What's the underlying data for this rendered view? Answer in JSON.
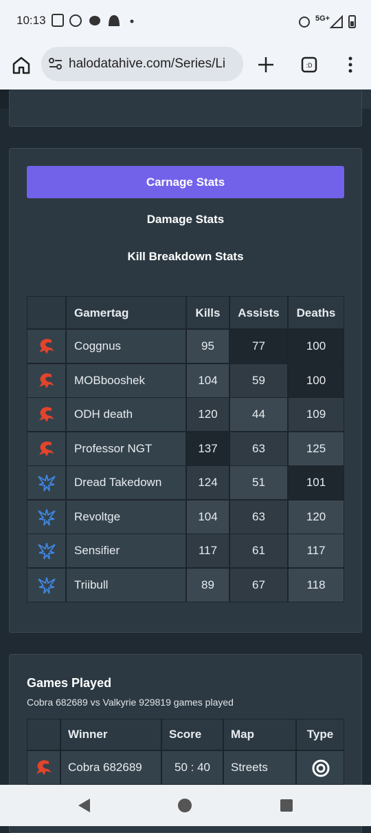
{
  "status_bar": {
    "time": "10:13",
    "network": "5G+"
  },
  "browser": {
    "url": "halodatahive.com/Series/Li"
  },
  "stats": {
    "tabs": [
      "Carnage Stats",
      "Damage Stats",
      "Kill Breakdown Stats"
    ],
    "columns": [
      "Gamertag",
      "Kills",
      "Assists",
      "Deaths"
    ],
    "teams": [
      {
        "players": [
          {
            "gamertag": "Coggnus",
            "kills": 95,
            "assists": 77,
            "deaths": 100
          },
          {
            "gamertag": "MOBbooshek",
            "kills": 104,
            "assists": 59,
            "deaths": 100
          },
          {
            "gamertag": "ODH death",
            "kills": 120,
            "assists": 44,
            "deaths": 109
          },
          {
            "gamertag": "Professor NGT",
            "kills": 137,
            "assists": 63,
            "deaths": 125
          }
        ]
      },
      {
        "players": [
          {
            "gamertag": "Dread Takedown",
            "kills": 124,
            "assists": 51,
            "deaths": 101
          },
          {
            "gamertag": "Revoltge",
            "kills": 104,
            "assists": 63,
            "deaths": 120
          },
          {
            "gamertag": "Sensifier",
            "kills": 117,
            "assists": 61,
            "deaths": 117
          },
          {
            "gamertag": "Triibull",
            "kills": 89,
            "assists": 67,
            "deaths": 118
          }
        ]
      }
    ]
  },
  "games": {
    "title": "Games Played",
    "subtitle": "Cobra 682689 vs Valkyrie 929819 games played",
    "columns": [
      "Winner",
      "Score",
      "Map",
      "Type"
    ],
    "rows": [
      {
        "winner": "Cobra 682689",
        "score": "50 : 40",
        "map": "Streets"
      }
    ]
  }
}
